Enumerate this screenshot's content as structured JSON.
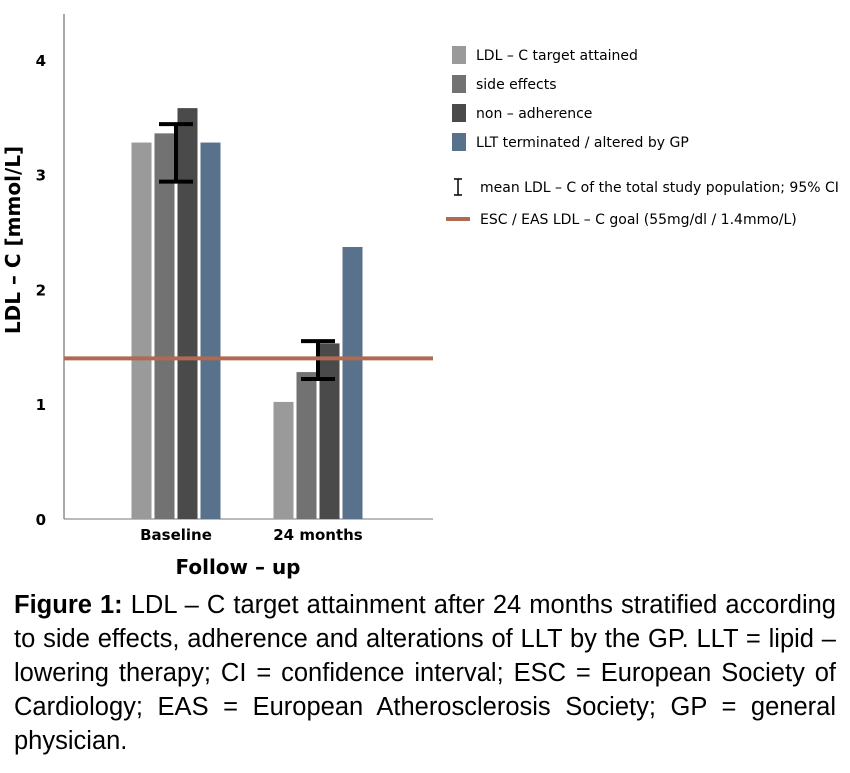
{
  "chart_data": {
    "type": "bar",
    "categories": [
      "Baseline",
      "24 months"
    ],
    "series": [
      {
        "name": "LDL – C target attained",
        "values": [
          3.28,
          1.02
        ],
        "color": "#9a9a9a"
      },
      {
        "name": "side effects",
        "values": [
          3.36,
          1.28
        ],
        "color": "#727272"
      },
      {
        "name": "non – adherence",
        "values": [
          3.58,
          1.53
        ],
        "color": "#4a4a4a"
      },
      {
        "name": "LLT terminated / altered by GP",
        "values": [
          3.28,
          2.37
        ],
        "color": "#57728a"
      }
    ],
    "error_bars": [
      {
        "category": "Baseline",
        "low": 2.94,
        "high": 3.44
      },
      {
        "category": "24 months",
        "low": 1.22,
        "high": 1.55
      }
    ],
    "error_bar_label": "mean LDL – C of the total study population; 95% CI",
    "reference_line": {
      "value": 1.4,
      "color": "#b06a52",
      "label": "ESC / EAS LDL – C goal (55mg/dl / 1.4mmo/L)"
    },
    "ylabel": "LDL – C [mmol/L]",
    "xlabel": "Follow – up",
    "ylim": [
      0,
      4.4
    ],
    "yticks": [
      0,
      1,
      2,
      3,
      4
    ],
    "legend_position": "top-right",
    "grid": false
  },
  "caption": {
    "label": "Figure 1:",
    "text": " LDL – C target attainment after 24 months stratified according to side effects, adherence and alterations of LLT by the GP. LLT = lipid – lowering therapy; CI = confidence interval; ESC = European Society of Cardiology; EAS = European Atherosclerosis Society; GP = general physician."
  }
}
